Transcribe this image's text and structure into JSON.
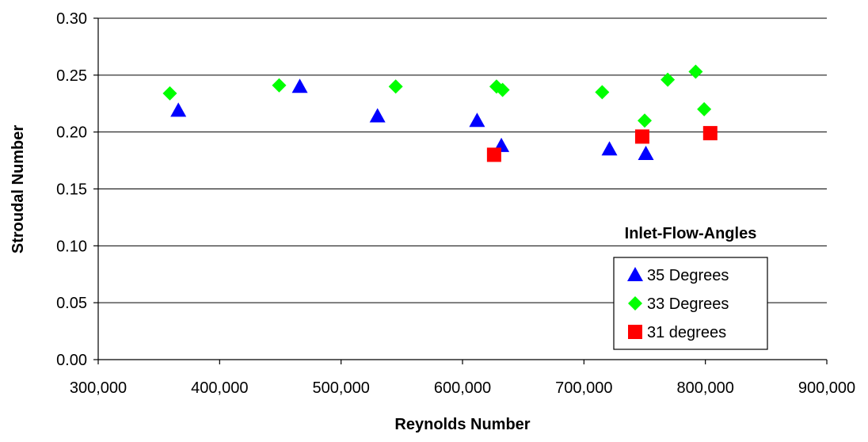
{
  "chart_data": {
    "type": "scatter",
    "title": "",
    "xlabel": "Reynolds Number",
    "ylabel": "Stroudal Number",
    "xlim": [
      300000,
      900000
    ],
    "ylim": [
      0.0,
      0.3
    ],
    "x_ticks": [
      "300,000",
      "400,000",
      "500,000",
      "600,000",
      "700,000",
      "800,000",
      "900,000"
    ],
    "y_ticks": [
      "0.00",
      "0.05",
      "0.10",
      "0.15",
      "0.20",
      "0.25",
      "0.30"
    ],
    "grid": "horizontal",
    "legend_title": "Inlet-Flow-Angles",
    "legend_position": "bottom-right",
    "series": [
      {
        "name": "35 Degrees",
        "marker": "triangle",
        "color": "#0000ff",
        "points": [
          [
            366000,
            0.219
          ],
          [
            466000,
            0.24
          ],
          [
            530000,
            0.214
          ],
          [
            612000,
            0.21
          ],
          [
            632000,
            0.188
          ],
          [
            721000,
            0.185
          ],
          [
            751000,
            0.181
          ]
        ]
      },
      {
        "name": "33 Degrees",
        "marker": "diamond",
        "color": "#00ff00",
        "points": [
          [
            359000,
            0.234
          ],
          [
            449000,
            0.241
          ],
          [
            545000,
            0.24
          ],
          [
            628000,
            0.24
          ],
          [
            633000,
            0.237
          ],
          [
            715000,
            0.235
          ],
          [
            750000,
            0.21
          ],
          [
            769000,
            0.246
          ],
          [
            792000,
            0.253
          ],
          [
            799000,
            0.22
          ]
        ]
      },
      {
        "name": "31 degrees",
        "marker": "square",
        "color": "#ff0000",
        "points": [
          [
            626000,
            0.18
          ],
          [
            748000,
            0.196
          ],
          [
            804000,
            0.199
          ]
        ]
      }
    ]
  }
}
